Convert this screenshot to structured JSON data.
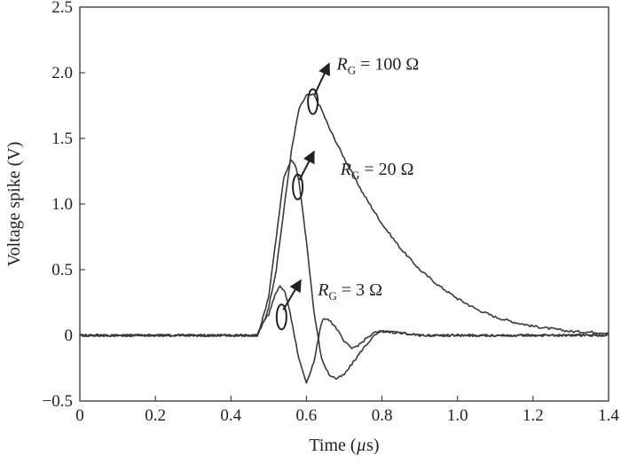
{
  "chart_data": {
    "type": "line",
    "title": "",
    "xlabel": "Time (µs)",
    "ylabel": "Voltage spike (V)",
    "xlim": [
      0,
      1.4
    ],
    "ylim": [
      -0.5,
      2.5
    ],
    "xticks": [
      "0",
      "0.2",
      "0.4",
      "0.6",
      "0.8",
      "1.0",
      "1.2",
      "1.4"
    ],
    "yticks": [
      "−0.5",
      "0",
      "0.5",
      "1.0",
      "1.5",
      "2.0",
      "2.5"
    ],
    "grid": false,
    "legend": "none",
    "line_color": "#3a3a3a",
    "series": [
      {
        "label_italic": "R",
        "label_sub": "G",
        "label_rest": " = 100 Ω",
        "x": [
          0,
          0.47,
          0.48,
          0.49,
          0.5,
          0.52,
          0.54,
          0.56,
          0.58,
          0.6,
          0.62,
          0.64,
          0.66,
          0.7,
          0.75,
          0.8,
          0.85,
          0.9,
          0.95,
          1.0,
          1.05,
          1.1,
          1.15,
          1.2,
          1.25,
          1.3,
          1.4
        ],
        "y": [
          0,
          0,
          0.06,
          0.12,
          0.22,
          0.5,
          0.95,
          1.4,
          1.72,
          1.83,
          1.83,
          1.72,
          1.58,
          1.35,
          1.08,
          0.85,
          0.66,
          0.5,
          0.38,
          0.28,
          0.2,
          0.14,
          0.1,
          0.07,
          0.05,
          0.03,
          0.02
        ]
      },
      {
        "label_italic": "R",
        "label_sub": "G",
        "label_rest": " = 20 Ω",
        "x": [
          0,
          0.47,
          0.48,
          0.5,
          0.52,
          0.54,
          0.56,
          0.57,
          0.58,
          0.6,
          0.62,
          0.64,
          0.66,
          0.68,
          0.7,
          0.72,
          0.75,
          0.78,
          0.8,
          0.85,
          0.9,
          1.0,
          1.2,
          1.4
        ],
        "y": [
          0,
          0,
          0.08,
          0.3,
          0.75,
          1.2,
          1.33,
          1.3,
          1.18,
          0.72,
          0.18,
          -0.18,
          -0.3,
          -0.33,
          -0.3,
          -0.22,
          -0.1,
          0.0,
          0.03,
          0.02,
          0.0,
          0.0,
          0.0,
          0.0
        ]
      },
      {
        "label_italic": "R",
        "label_sub": "G",
        "label_rest": " = 3 Ω",
        "x": [
          0,
          0.47,
          0.48,
          0.5,
          0.51,
          0.52,
          0.53,
          0.54,
          0.55,
          0.56,
          0.58,
          0.6,
          0.62,
          0.64,
          0.65,
          0.66,
          0.68,
          0.7,
          0.72,
          0.74,
          0.76,
          0.78,
          0.8,
          0.85,
          0.9,
          1.0,
          1.2,
          1.4
        ],
        "y": [
          0,
          0,
          0.08,
          0.16,
          0.25,
          0.33,
          0.37,
          0.35,
          0.26,
          0.12,
          -0.18,
          -0.36,
          -0.2,
          0.1,
          0.13,
          0.12,
          0.05,
          -0.05,
          -0.1,
          -0.07,
          -0.02,
          0.02,
          0.03,
          0.02,
          0.0,
          0.0,
          0.0,
          0.0
        ]
      }
    ],
    "annotations": [
      {
        "series": 0,
        "ellipse_at": [
          0.617,
          1.78
        ],
        "arrow_to": [
          0.66,
          2.07
        ],
        "text_at": [
          0.68,
          2.07
        ]
      },
      {
        "series": 1,
        "ellipse_at": [
          0.577,
          1.13
        ],
        "arrow_to": [
          0.62,
          1.4
        ],
        "text_at": [
          0.69,
          1.27
        ]
      },
      {
        "series": 2,
        "ellipse_at": [
          0.534,
          0.14
        ],
        "arrow_to": [
          0.585,
          0.42
        ],
        "text_at": [
          0.63,
          0.35
        ]
      }
    ]
  }
}
